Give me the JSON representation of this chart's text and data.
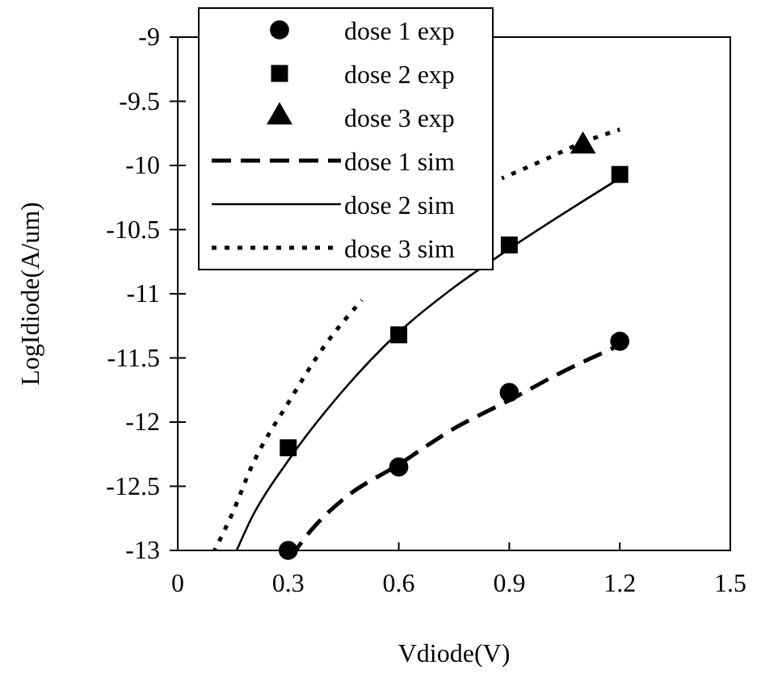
{
  "chart_data": {
    "type": "line",
    "xlabel": "Vdiode(V)",
    "ylabel": "LogIdiode(A/um)",
    "xlim": [
      0,
      1.5
    ],
    "xticks": [
      0,
      0.3,
      0.6,
      0.9,
      1.2,
      1.5
    ],
    "ylim": [
      -13,
      -9
    ],
    "yticks": [
      -13,
      -12.5,
      -12,
      -11.5,
      -11,
      -10.5,
      -10,
      -9.5,
      -9
    ],
    "grid": false,
    "legend": "top left",
    "series": [
      {
        "name": "dose 1 exp",
        "type": "scatter",
        "marker": "circle",
        "color": "#000000",
        "x": [
          0.3,
          0.6,
          0.9,
          1.2
        ],
        "values": [
          -13,
          -12.35,
          -11.77,
          -11.37
        ]
      },
      {
        "name": "dose 2 exp",
        "type": "scatter",
        "marker": "square",
        "color": "#000000",
        "x": [
          0.3,
          0.6,
          0.9,
          1.2
        ],
        "values": [
          -12.2,
          -11.32,
          -10.62,
          -10.07
        ]
      },
      {
        "name": "dose 3 exp",
        "type": "scatter",
        "marker": "triangle",
        "color": "#000000",
        "x": [
          1.1
        ],
        "values": [
          -9.85
        ]
      },
      {
        "name": "dose 1 sim",
        "type": "line",
        "line_style": "dashed",
        "color": "#000000",
        "x": [
          0.32,
          0.36,
          0.45,
          0.6,
          0.75,
          0.9,
          1.05,
          1.2
        ],
        "values": [
          -13,
          -12.85,
          -12.6,
          -12.33,
          -12.05,
          -11.83,
          -11.6,
          -11.4
        ]
      },
      {
        "name": "dose 2 sim",
        "type": "line",
        "line_style": "solid",
        "color": "#000000",
        "x": [
          0.16,
          0.2,
          0.3,
          0.45,
          0.6,
          0.75,
          0.9,
          1.2
        ],
        "values": [
          -13,
          -12.75,
          -12.3,
          -11.75,
          -11.3,
          -10.95,
          -10.65,
          -10.1
        ]
      },
      {
        "name": "dose 3 sim",
        "type": "line",
        "line_style": "dotted",
        "color": "#000000",
        "x": [
          0.1,
          0.15,
          0.2,
          0.3,
          0.4,
          0.5,
          0.7,
          0.88,
          1.0,
          1.1,
          1.2
        ],
        "values": [
          -13,
          -12.7,
          -12.35,
          -11.85,
          -11.4,
          -11.05,
          null,
          -10.1,
          -9.95,
          -9.82,
          -9.72
        ]
      }
    ]
  }
}
